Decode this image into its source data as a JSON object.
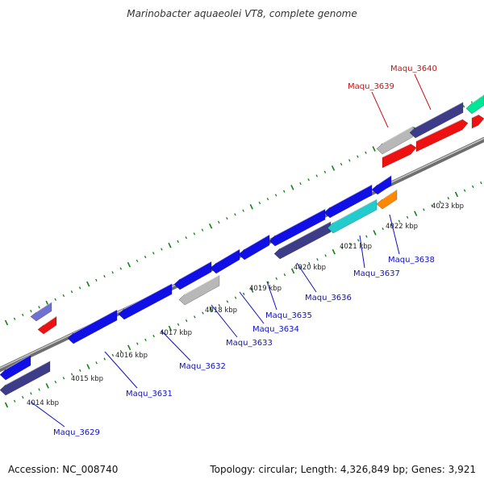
{
  "title": "Marinobacter aquaeolei VT8, complete genome",
  "accession_text": "Accession: NC_008740",
  "topology_text": "Topology: circular; Length: 4,326,849 bp; Genes: 3,921",
  "colors": {
    "blue": "#1010e6",
    "navy": "#3c3c88",
    "red": "#ee1111",
    "grey": "#b8b8b8",
    "cyan": "#22cccc",
    "orange": "#ff8800",
    "green_teal": "#00e699",
    "lavender": "#7070d0",
    "tick": "#128212",
    "label_blue": "#1010c0",
    "label_red": "#cc1111"
  },
  "scale_labels": [
    "4014 kbp",
    "4015 kbp",
    "4016 kbp",
    "4017 kbp",
    "4018 kbp",
    "4019 kbp",
    "4020 kbp",
    "4021 kbp",
    "4022 kbp",
    "4023 kbp"
  ],
  "gene_labels_minus": [
    "Maqu_3629",
    "Maqu_3631",
    "Maqu_3632",
    "Maqu_3633",
    "Maqu_3634",
    "Maqu_3635",
    "Maqu_3636",
    "Maqu_3637",
    "Maqu_3638"
  ],
  "gene_labels_plus": [
    "Maqu_3639",
    "Maqu_3640"
  ]
}
